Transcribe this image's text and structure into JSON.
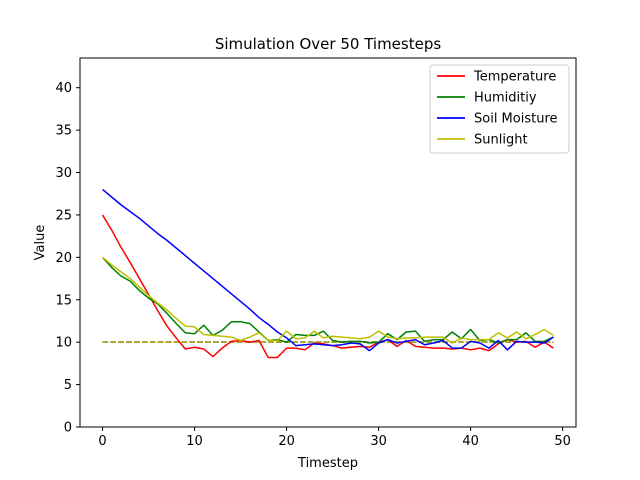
{
  "chart_data": {
    "type": "line",
    "title": "Simulation Over 50 Timesteps",
    "xlabel": "Timestep",
    "ylabel": "Value",
    "xlim": [
      -2.45,
      51.45
    ],
    "ylim": [
      0,
      43.5
    ],
    "xticks": [
      0,
      10,
      20,
      30,
      40,
      50
    ],
    "yticks": [
      0,
      5,
      10,
      15,
      20,
      25,
      30,
      35,
      40
    ],
    "grid": false,
    "legend_position": "top-right",
    "x": [
      0,
      1,
      2,
      3,
      4,
      5,
      6,
      7,
      8,
      9,
      10,
      11,
      12,
      13,
      14,
      15,
      16,
      17,
      18,
      19,
      20,
      21,
      22,
      23,
      24,
      25,
      26,
      27,
      28,
      29,
      30,
      31,
      32,
      33,
      34,
      35,
      36,
      37,
      38,
      39,
      40,
      41,
      42,
      43,
      44,
      45,
      46,
      47,
      48,
      49
    ],
    "series": [
      {
        "name": "Temperature",
        "color": "#ff0000",
        "values": [
          25.0,
          23.2,
          21.2,
          19.4,
          17.5,
          15.6,
          13.7,
          11.9,
          10.5,
          9.2,
          9.4,
          9.2,
          8.3,
          9.3,
          10.1,
          10.2,
          10.0,
          10.2,
          8.2,
          8.2,
          9.3,
          9.3,
          9.1,
          9.9,
          9.8,
          9.6,
          9.3,
          9.4,
          9.5,
          9.4,
          10.0,
          10.3,
          9.5,
          10.2,
          9.5,
          9.4,
          9.3,
          9.3,
          9.2,
          9.3,
          9.1,
          9.3,
          9.0,
          9.8,
          10.3,
          10.0,
          10.1,
          9.4,
          10.0,
          9.3
        ]
      },
      {
        "name": "Humiditiy",
        "color": "#008000",
        "values": [
          20.0,
          18.8,
          17.8,
          17.2,
          16.1,
          15.2,
          14.5,
          13.4,
          12.2,
          11.1,
          11.0,
          12.0,
          10.8,
          11.4,
          12.4,
          12.4,
          12.2,
          11.2,
          10.2,
          10.3,
          10.0,
          10.9,
          10.8,
          10.8,
          11.3,
          10.2,
          10.0,
          10.1,
          10.1,
          9.9,
          10.0,
          11.0,
          10.3,
          11.2,
          11.3,
          10.1,
          10.3,
          10.3,
          11.2,
          10.4,
          11.5,
          10.2,
          10.3,
          9.9,
          10.3,
          10.3,
          11.1,
          10.1,
          10.1,
          10.6
        ]
      },
      {
        "name": "Soil Moisture",
        "color": "#0000ff",
        "values": [
          28.0,
          27.1,
          26.2,
          25.4,
          24.6,
          23.7,
          22.8,
          22.0,
          21.1,
          20.2,
          19.3,
          18.4,
          17.5,
          16.6,
          15.7,
          14.8,
          13.9,
          12.9,
          12.1,
          11.2,
          10.5,
          9.6,
          9.7,
          9.8,
          9.7,
          9.6,
          9.7,
          9.9,
          9.8,
          9.0,
          9.9,
          10.3,
          9.9,
          10.1,
          10.3,
          9.7,
          9.9,
          10.2,
          9.3,
          9.3,
          10.1,
          9.9,
          9.3,
          10.2,
          9.1,
          10.1,
          10.0,
          10.0,
          9.9,
          10.6
        ]
      },
      {
        "name": "Sunlight",
        "color": "#bfbf00",
        "values": [
          20.0,
          19.1,
          18.3,
          17.5,
          16.5,
          15.5,
          14.6,
          13.8,
          12.8,
          11.9,
          11.8,
          10.9,
          10.8,
          10.7,
          10.6,
          10.2,
          10.6,
          11.1,
          10.2,
          10.2,
          11.3,
          10.4,
          10.5,
          11.3,
          10.5,
          10.7,
          10.6,
          10.5,
          10.4,
          10.6,
          11.3,
          10.6,
          10.4,
          10.5,
          10.5,
          10.6,
          10.6,
          10.6,
          9.9,
          10.5,
          10.3,
          10.3,
          10.3,
          11.1,
          10.5,
          11.2,
          10.4,
          10.9,
          11.5,
          10.8
        ]
      }
    ],
    "reference_lines": [
      {
        "color": "#ff0000",
        "value": 10,
        "x_range": [
          0,
          49
        ]
      },
      {
        "color": "#008000",
        "value": 10,
        "x_range": [
          0,
          49
        ]
      },
      {
        "color": "#0000ff",
        "value": 10,
        "x_range": [
          0,
          49
        ]
      },
      {
        "color": "#bfbf00",
        "value": 10,
        "x_range": [
          0,
          49
        ]
      }
    ]
  }
}
